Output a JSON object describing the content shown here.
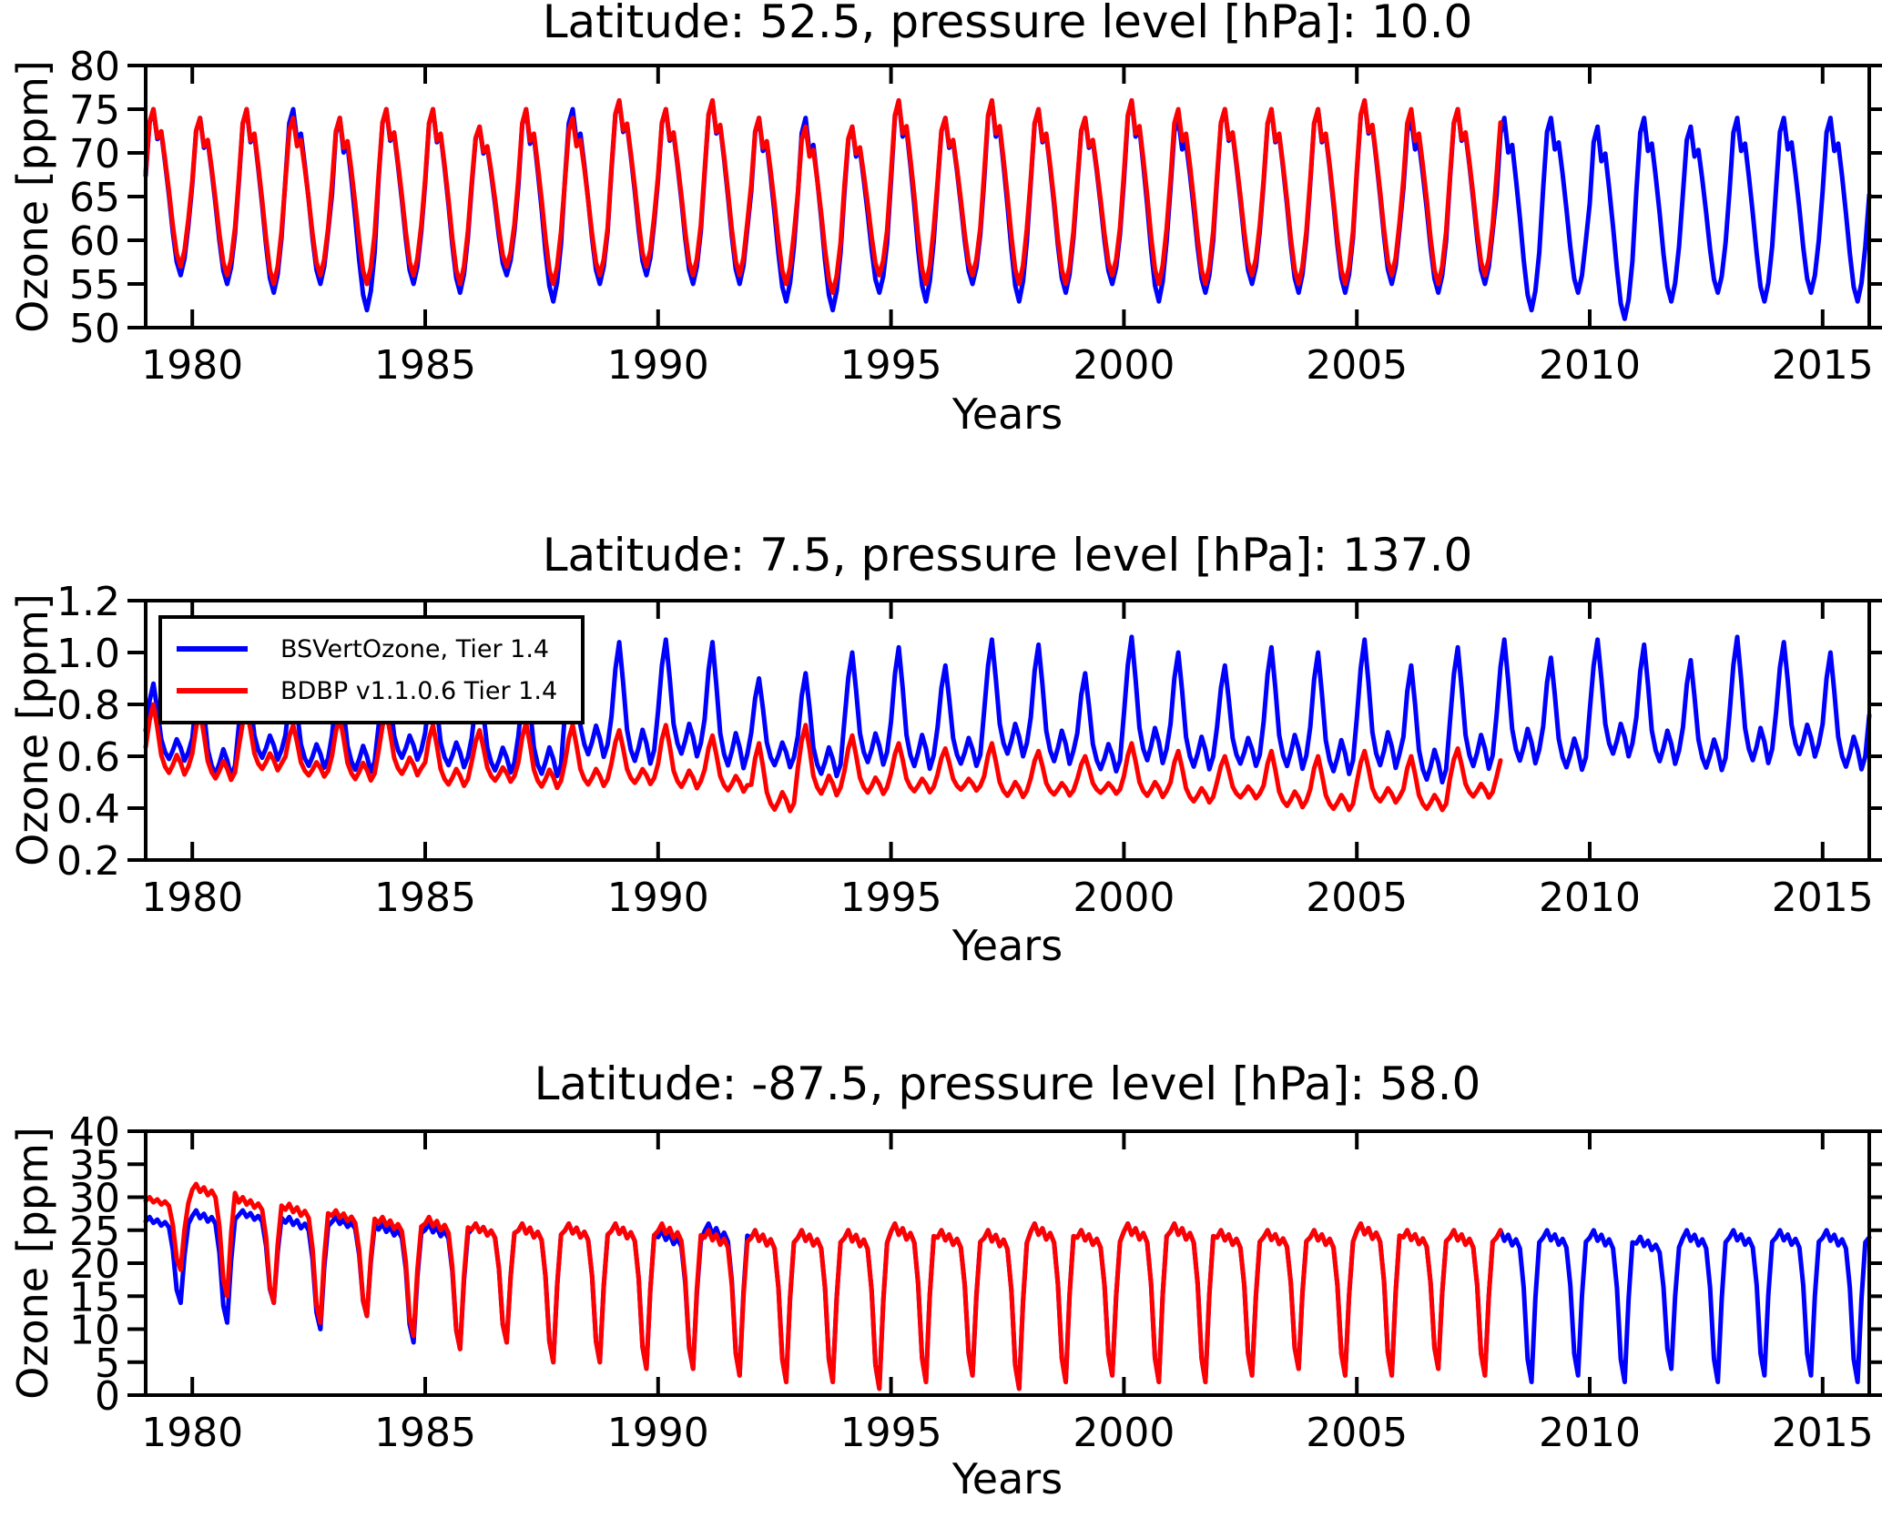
{
  "figure": {
    "background": "#ffffff",
    "text_color": "#000000",
    "series_colors": {
      "bsvertozone": "#0000ff",
      "bdbp": "#ff0000"
    }
  },
  "chart_data": [
    {
      "type": "line",
      "title": "Latitude: 52.5, pressure level [hPa]: 10.0",
      "xlabel": "Years",
      "ylabel": "Ozone [ppm]",
      "xlim": [
        1979,
        2016
      ],
      "ylim": [
        50,
        80
      ],
      "xtick_values": [
        1980,
        1985,
        1990,
        1995,
        2000,
        2005,
        2010,
        2015
      ],
      "xtick_labels": [
        "1980",
        "1985",
        "1990",
        "1995",
        "2000",
        "2005",
        "2010",
        "2015"
      ],
      "ytick_values": [
        80,
        75,
        70,
        65,
        60,
        55,
        50
      ],
      "ytick_labels": [
        "80",
        "75",
        "70",
        "65",
        "60",
        "55",
        "50"
      ],
      "grid": false,
      "seasonal_shape": [
        0.6,
        0.92,
        1.0,
        0.82,
        0.86,
        0.68,
        0.48,
        0.26,
        0.08,
        0.0,
        0.1,
        0.3
      ],
      "series": [
        {
          "name": "BSVertOzone, Tier 1.4",
          "color": "#0000ff",
          "x_start": 1979,
          "x_end": 2016.0,
          "annual_max": [
            75,
            74,
            75,
            75,
            74,
            75,
            75,
            73,
            75,
            75,
            76,
            75,
            76,
            74,
            74,
            73,
            76,
            74,
            76,
            75,
            74,
            76,
            74,
            75,
            75,
            75,
            76,
            74,
            75,
            74,
            74,
            73,
            74,
            73,
            74,
            74,
            74,
            74
          ],
          "annual_min": [
            56,
            55,
            54,
            55,
            52,
            55,
            54,
            56,
            53,
            55,
            56,
            55,
            55,
            53,
            52,
            54,
            53,
            55,
            53,
            54,
            55,
            53,
            54,
            55,
            54,
            54,
            55,
            54,
            55,
            52,
            54,
            51,
            53,
            54,
            53,
            54,
            53,
            52
          ]
        },
        {
          "name": "BDBP v1.1.0.6 Tier 1.4",
          "color": "#ff0000",
          "x_start": 1979,
          "x_end": 2008.1,
          "annual_max": [
            75,
            74,
            75,
            74,
            74,
            75,
            75,
            73,
            75,
            74,
            76,
            75,
            76,
            74,
            73,
            73,
            76,
            74,
            76,
            75,
            74,
            76,
            75,
            75,
            75,
            75,
            76,
            75,
            75,
            75
          ],
          "annual_min": [
            57,
            56,
            55,
            56,
            55,
            56,
            55,
            57,
            55,
            56,
            57,
            56,
            56,
            55,
            54,
            56,
            55,
            56,
            55,
            55,
            56,
            55,
            55,
            56,
            55,
            55,
            56,
            55,
            56,
            56
          ]
        }
      ]
    },
    {
      "type": "line",
      "title": "Latitude: 7.5, pressure level [hPa]: 137.0",
      "xlabel": "Years",
      "ylabel": "Ozone [ppm]",
      "xlim": [
        1979,
        2016
      ],
      "ylim": [
        0.2,
        1.2
      ],
      "xtick_values": [
        1980,
        1985,
        1990,
        1995,
        2000,
        2005,
        2010,
        2015
      ],
      "xtick_labels": [
        "1980",
        "1985",
        "1990",
        "1995",
        "2000",
        "2005",
        "2010",
        "2015"
      ],
      "ytick_values": [
        1.2,
        1.0,
        0.8,
        0.6,
        0.4,
        0.2
      ],
      "ytick_labels": [
        "1.2",
        "1.0",
        "0.8",
        "0.6",
        "0.4",
        "0.2"
      ],
      "grid": false,
      "legend_position": "upper left",
      "seasonal_shape": [
        0.45,
        0.8,
        1.0,
        0.7,
        0.35,
        0.2,
        0.12,
        0.22,
        0.35,
        0.25,
        0.1,
        0.2
      ],
      "series": [
        {
          "name": "BSVertOzone, Tier 1.4",
          "color": "#0000ff",
          "x_start": 1979,
          "x_end": 2016.0,
          "annual_max": [
            0.88,
            0.9,
            0.92,
            0.88,
            0.9,
            0.92,
            0.9,
            0.88,
            0.92,
            1.03,
            1.04,
            1.05,
            1.04,
            0.9,
            0.92,
            1.0,
            1.02,
            0.95,
            1.05,
            1.03,
            0.92,
            1.06,
            1.0,
            0.95,
            1.02,
            1.0,
            1.05,
            0.95,
            1.02,
            1.05,
            0.98,
            1.05,
            1.03,
            0.97,
            1.06,
            1.04,
            1.0,
            1.05
          ],
          "annual_min": [
            0.55,
            0.48,
            0.55,
            0.52,
            0.5,
            0.55,
            0.52,
            0.5,
            0.48,
            0.55,
            0.52,
            0.55,
            0.5,
            0.52,
            0.48,
            0.52,
            0.5,
            0.52,
            0.55,
            0.52,
            0.5,
            0.52,
            0.5,
            0.52,
            0.5,
            0.48,
            0.5,
            0.45,
            0.5,
            0.52,
            0.5,
            0.55,
            0.52,
            0.5,
            0.52,
            0.55,
            0.5,
            0.52
          ]
        },
        {
          "name": "BDBP v1.1.0.6 Tier 1.4",
          "color": "#ff0000",
          "x_start": 1979,
          "x_end": 2008.1,
          "annual_max": [
            0.8,
            0.77,
            0.78,
            0.72,
            0.75,
            0.77,
            0.72,
            0.7,
            0.73,
            0.72,
            0.7,
            0.72,
            0.68,
            0.65,
            0.72,
            0.68,
            0.65,
            0.63,
            0.65,
            0.62,
            0.6,
            0.65,
            0.62,
            0.6,
            0.62,
            0.6,
            0.62,
            0.6,
            0.63,
            0.62
          ],
          "annual_min": [
            0.5,
            0.48,
            0.52,
            0.5,
            0.48,
            0.5,
            0.46,
            0.48,
            0.45,
            0.46,
            0.47,
            0.45,
            0.44,
            0.36,
            0.42,
            0.43,
            0.44,
            0.45,
            0.42,
            0.43,
            0.44,
            0.42,
            0.4,
            0.42,
            0.38,
            0.37,
            0.4,
            0.37,
            0.42,
            0.44
          ]
        }
      ]
    },
    {
      "type": "line",
      "title": "Latitude: -87.5, pressure level [hPa]: 58.0",
      "xlabel": "Years",
      "ylabel": "Ozone [ppm]",
      "xlim": [
        1979,
        2016
      ],
      "ylim": [
        0,
        40
      ],
      "xtick_values": [
        1980,
        1985,
        1990,
        1995,
        2000,
        2005,
        2010,
        2015
      ],
      "xtick_labels": [
        "1980",
        "1985",
        "1990",
        "1995",
        "2000",
        "2005",
        "2010",
        "2015"
      ],
      "ytick_values": [
        40,
        35,
        30,
        25,
        20,
        15,
        10,
        5,
        0
      ],
      "ytick_labels": [
        "40",
        "35",
        "30",
        "25",
        "20",
        "15",
        "10",
        "5",
        "0"
      ],
      "grid": false,
      "seasonal_shape": [
        0.95,
        1.0,
        0.93,
        0.97,
        0.9,
        0.94,
        0.88,
        0.62,
        0.15,
        0.0,
        0.55,
        0.92
      ],
      "series": [
        {
          "name": "BSVertOzone, Tier 1.4",
          "color": "#0000ff",
          "x_start": 1979,
          "x_end": 2016.0,
          "annual_max": [
            27,
            28,
            28,
            27,
            27,
            26,
            26,
            26,
            26,
            26,
            26,
            25,
            26,
            25,
            25,
            25,
            26,
            25,
            25,
            26,
            25,
            26,
            26,
            25,
            25,
            25,
            26,
            25,
            25,
            25,
            25,
            25,
            24,
            25,
            25,
            25,
            25,
            25
          ],
          "annual_min": [
            14,
            11,
            14,
            10,
            12,
            8,
            7,
            8,
            5,
            5,
            4,
            4,
            3,
            2,
            2,
            1,
            2,
            3,
            1,
            2,
            3,
            2,
            2,
            3,
            4,
            3,
            3,
            4,
            3,
            2,
            3,
            2,
            4,
            2,
            3,
            3,
            2,
            3
          ]
        },
        {
          "name": "BDBP v1.1.0.6 Tier 1.4",
          "color": "#ff0000",
          "x_start": 1979,
          "x_end": 2008.1,
          "annual_max": [
            30,
            32,
            30,
            29,
            28,
            27,
            27,
            26,
            26,
            26,
            26,
            26,
            25,
            25,
            25,
            25,
            26,
            25,
            25,
            26,
            25,
            26,
            26,
            25,
            25,
            25,
            26,
            25,
            25,
            25
          ],
          "annual_min": [
            19,
            15,
            14,
            11,
            12,
            9,
            7,
            8,
            5,
            5,
            4,
            4,
            3,
            2,
            2,
            1,
            2,
            3,
            1,
            2,
            3,
            2,
            2,
            3,
            4,
            3,
            3,
            4,
            3,
            3
          ]
        }
      ]
    }
  ]
}
